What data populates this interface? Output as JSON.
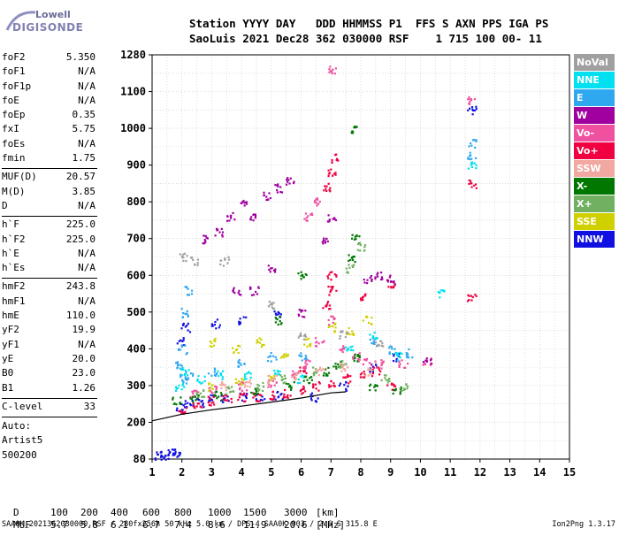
{
  "logo": {
    "line1": "Lowell",
    "line2": "DIGISONDE"
  },
  "header": {
    "line1": "Station YYYY DAY   DDD HHMMSS P1  FFS S AXN PPS IGA PS",
    "line2": "SaoLuis 2021 Dec28 362 030000 RSF    1 715 100 00- 11"
  },
  "params_group1": [
    {
      "k": "foF2",
      "v": "5.350"
    },
    {
      "k": "foF1",
      "v": "N/A"
    },
    {
      "k": "foF1p",
      "v": "N/A"
    },
    {
      "k": "foE",
      "v": "N/A"
    },
    {
      "k": "foEp",
      "v": "0.35"
    },
    {
      "k": "fxI",
      "v": "5.75"
    },
    {
      "k": "foEs",
      "v": "N/A"
    },
    {
      "k": "fmin",
      "v": "1.75"
    }
  ],
  "params_group2": [
    {
      "k": "MUF(D)",
      "v": "20.57"
    },
    {
      "k": "M(D)",
      "v": "3.85"
    },
    {
      "k": "D",
      "v": "N/A"
    }
  ],
  "params_group3": [
    {
      "k": "h`F",
      "v": "225.0"
    },
    {
      "k": "h`F2",
      "v": "225.0"
    },
    {
      "k": "h`E",
      "v": "N/A"
    },
    {
      "k": "h`Es",
      "v": "N/A"
    }
  ],
  "params_group4": [
    {
      "k": "hmF2",
      "v": "243.8"
    },
    {
      "k": "hmF1",
      "v": "N/A"
    },
    {
      "k": "hmE",
      "v": "110.0"
    },
    {
      "k": "yF2",
      "v": "19.9"
    },
    {
      "k": "yF1",
      "v": "N/A"
    },
    {
      "k": "yE",
      "v": "20.0"
    },
    {
      "k": "B0",
      "v": "23.0"
    },
    {
      "k": "B1",
      "v": "1.26"
    }
  ],
  "params_group5": [
    {
      "k": "C-level",
      "v": "33"
    }
  ],
  "autoscale": {
    "line1": "Auto:",
    "line2": "Artist5",
    "line3": "500200"
  },
  "legend": [
    {
      "label": "NoVal",
      "color": "#a0a0a0"
    },
    {
      "label": "NNE",
      "color": "#00e0f0"
    },
    {
      "label": "E",
      "color": "#30a8f0"
    },
    {
      "label": "W",
      "color": "#a000a0"
    },
    {
      "label": "Vo-",
      "color": "#f050a0"
    },
    {
      "label": "Vo+",
      "color": "#f00040"
    },
    {
      "label": "SSW",
      "color": "#f0a8a0"
    },
    {
      "label": "X-",
      "color": "#007800"
    },
    {
      "label": "X+",
      "color": "#70b060"
    },
    {
      "label": "SSE",
      "color": "#d0d000"
    },
    {
      "label": "NNW",
      "color": "#1010e0"
    }
  ],
  "chart_data": {
    "type": "scatter",
    "title": "",
    "xlabel": "",
    "ylabel": "",
    "xlim": [
      1,
      15
    ],
    "ylim": [
      80,
      1280
    ],
    "x_ticks": [
      "1",
      "2",
      "3",
      "4",
      "5",
      "6",
      "7",
      "8",
      "9",
      "10",
      "11",
      "12",
      "13",
      "14",
      "15"
    ],
    "y_ticks": [
      "80",
      "200",
      "300",
      "400",
      "500",
      "600",
      "700",
      "800",
      "900",
      "1000",
      "1100",
      "1280"
    ],
    "y_tick_values": [
      80,
      200,
      300,
      400,
      500,
      600,
      700,
      800,
      900,
      1000,
      1100,
      1280
    ],
    "grid": true,
    "series": [
      {
        "name": "NNW",
        "values": [
          [
            1.2,
            92
          ],
          [
            1.4,
            95
          ],
          [
            1.6,
            100
          ],
          [
            1.8,
            102
          ],
          [
            1.9,
            240
          ],
          [
            2.2,
            250
          ],
          [
            2.6,
            255
          ],
          [
            3.0,
            265
          ],
          [
            3.4,
            265
          ],
          [
            4.0,
            270
          ],
          [
            4.6,
            270
          ],
          [
            5.2,
            275
          ],
          [
            1.9,
            420
          ],
          [
            2.1,
            460
          ],
          [
            3.1,
            470
          ],
          [
            4.0,
            480
          ],
          [
            5.2,
            500
          ],
          [
            6.4,
            270
          ],
          [
            7.4,
            300
          ],
          [
            8.4,
            350
          ],
          [
            9.2,
            380
          ],
          [
            11.7,
            1050
          ]
        ]
      },
      {
        "name": "Vo+",
        "values": [
          [
            2.0,
            230
          ],
          [
            2.5,
            250
          ],
          [
            3.0,
            260
          ],
          [
            3.5,
            265
          ],
          [
            4.0,
            270
          ],
          [
            4.5,
            270
          ],
          [
            5.0,
            275
          ],
          [
            5.5,
            280
          ],
          [
            6.0,
            290
          ],
          [
            6.5,
            300
          ],
          [
            7.0,
            310
          ],
          [
            7.5,
            320
          ],
          [
            8.0,
            330
          ],
          [
            8.5,
            340
          ],
          [
            9.0,
            300
          ],
          [
            6.0,
            340
          ],
          [
            6.8,
            520
          ],
          [
            7.0,
            560
          ],
          [
            7.0,
            600
          ],
          [
            8.0,
            540
          ],
          [
            9.0,
            580
          ],
          [
            6.8,
            840
          ],
          [
            7.0,
            880
          ],
          [
            7.1,
            920
          ],
          [
            11.7,
            850
          ],
          [
            11.7,
            540
          ]
        ]
      },
      {
        "name": "Vo-",
        "values": [
          [
            2.4,
            280
          ],
          [
            3.0,
            290
          ],
          [
            4.0,
            300
          ],
          [
            5.0,
            310
          ],
          [
            5.8,
            330
          ],
          [
            6.2,
            360
          ],
          [
            6.6,
            420
          ],
          [
            7.0,
            480
          ],
          [
            7.4,
            400
          ],
          [
            7.8,
            380
          ],
          [
            8.2,
            370
          ],
          [
            8.6,
            360
          ],
          [
            9.4,
            360
          ],
          [
            10.2,
            370
          ],
          [
            6.2,
            760
          ],
          [
            6.5,
            800
          ],
          [
            7.0,
            1210
          ],
          [
            11.7,
            1080
          ]
        ]
      },
      {
        "name": "W",
        "values": [
          [
            2.8,
            700
          ],
          [
            3.2,
            720
          ],
          [
            3.6,
            760
          ],
          [
            4.0,
            800
          ],
          [
            4.4,
            760
          ],
          [
            4.8,
            820
          ],
          [
            5.2,
            840
          ],
          [
            5.6,
            860
          ],
          [
            6.0,
            500
          ],
          [
            5.0,
            620
          ],
          [
            4.4,
            560
          ],
          [
            3.8,
            560
          ],
          [
            6.8,
            700
          ],
          [
            7.0,
            760
          ],
          [
            8.2,
            590
          ],
          [
            8.6,
            600
          ],
          [
            9.0,
            590
          ],
          [
            10.2,
            370
          ]
        ]
      },
      {
        "name": "E",
        "values": [
          [
            1.9,
            360
          ],
          [
            2.0,
            400
          ],
          [
            2.1,
            500
          ],
          [
            2.2,
            560
          ],
          [
            2.0,
            320
          ],
          [
            2.2,
            330
          ],
          [
            3.0,
            340
          ],
          [
            4.0,
            360
          ],
          [
            5.0,
            380
          ],
          [
            6.0,
            380
          ],
          [
            8.4,
            420
          ],
          [
            9.0,
            400
          ],
          [
            9.6,
            390
          ],
          [
            11.7,
            930
          ],
          [
            11.7,
            960
          ]
        ]
      },
      {
        "name": "NNE",
        "values": [
          [
            1.9,
            300
          ],
          [
            2.1,
            340
          ],
          [
            2.6,
            320
          ],
          [
            3.2,
            330
          ],
          [
            4.2,
            330
          ],
          [
            5.2,
            340
          ],
          [
            6.0,
            320
          ],
          [
            7.6,
            400
          ],
          [
            8.4,
            440
          ],
          [
            9.2,
            380
          ],
          [
            10.7,
            550
          ],
          [
            11.7,
            900
          ]
        ]
      },
      {
        "name": "X-",
        "values": [
          [
            1.8,
            260
          ],
          [
            2.4,
            270
          ],
          [
            3.2,
            275
          ],
          [
            4.4,
            285
          ],
          [
            5.6,
            300
          ],
          [
            6.2,
            320
          ],
          [
            6.8,
            340
          ],
          [
            7.2,
            360
          ],
          [
            7.8,
            380
          ],
          [
            8.4,
            300
          ],
          [
            9.2,
            290
          ],
          [
            7.7,
            650
          ],
          [
            7.8,
            700
          ],
          [
            7.8,
            1000
          ],
          [
            6.0,
            600
          ],
          [
            5.2,
            480
          ]
        ]
      },
      {
        "name": "X+",
        "values": [
          [
            2.6,
            280
          ],
          [
            3.6,
            290
          ],
          [
            4.6,
            300
          ],
          [
            5.4,
            320
          ],
          [
            6.4,
            340
          ],
          [
            7.4,
            360
          ],
          [
            8.0,
            680
          ],
          [
            7.6,
            620
          ],
          [
            8.8,
            320
          ],
          [
            9.4,
            300
          ]
        ]
      },
      {
        "name": "SSE",
        "values": [
          [
            3.0,
            420
          ],
          [
            3.8,
            400
          ],
          [
            4.6,
            420
          ],
          [
            5.4,
            380
          ],
          [
            6.2,
            420
          ],
          [
            7.0,
            460
          ],
          [
            7.6,
            450
          ],
          [
            8.2,
            480
          ],
          [
            2.9,
            300
          ],
          [
            3.9,
            310
          ],
          [
            5.0,
            320
          ]
        ]
      },
      {
        "name": "SSW",
        "values": [
          [
            3.4,
            300
          ],
          [
            4.2,
            310
          ],
          [
            5.0,
            320
          ],
          [
            5.8,
            330
          ],
          [
            6.6,
            340
          ],
          [
            7.4,
            350
          ],
          [
            8.2,
            340
          ]
        ]
      },
      {
        "name": "NoVal",
        "values": [
          [
            2.0,
            650
          ],
          [
            2.4,
            640
          ],
          [
            3.4,
            640
          ],
          [
            5.0,
            520
          ],
          [
            6.0,
            440
          ],
          [
            7.4,
            440
          ],
          [
            8.6,
            420
          ]
        ]
      }
    ],
    "profile_curve": [
      [
        1.0,
        204
      ],
      [
        2.0,
        222
      ],
      [
        3.0,
        234
      ],
      [
        4.0,
        244
      ],
      [
        5.0,
        255
      ],
      [
        6.0,
        266
      ],
      [
        7.0,
        280
      ],
      [
        7.5,
        283
      ]
    ]
  },
  "footer": {
    "d_label": "D",
    "d_vals": [
      "100",
      "200",
      "400",
      "600",
      "800",
      "1000",
      "1500",
      "3000"
    ],
    "d_unit": "[km]",
    "muf_label": "MUF",
    "muf_vals": [
      "5.7",
      "5.8",
      "6.1",
      "6.7",
      "7.4",
      "8.6",
      "11.9",
      "20.6"
    ],
    "muf_unit": "[MHz]",
    "file_info": "SAA0K_2021362030000.RSF / 280fx256h 50 kHz 5.0 km / DPS-4 SAA0K 903 / 2.6 S 315.8 E",
    "version": "Ion2Png 1.3.17"
  }
}
